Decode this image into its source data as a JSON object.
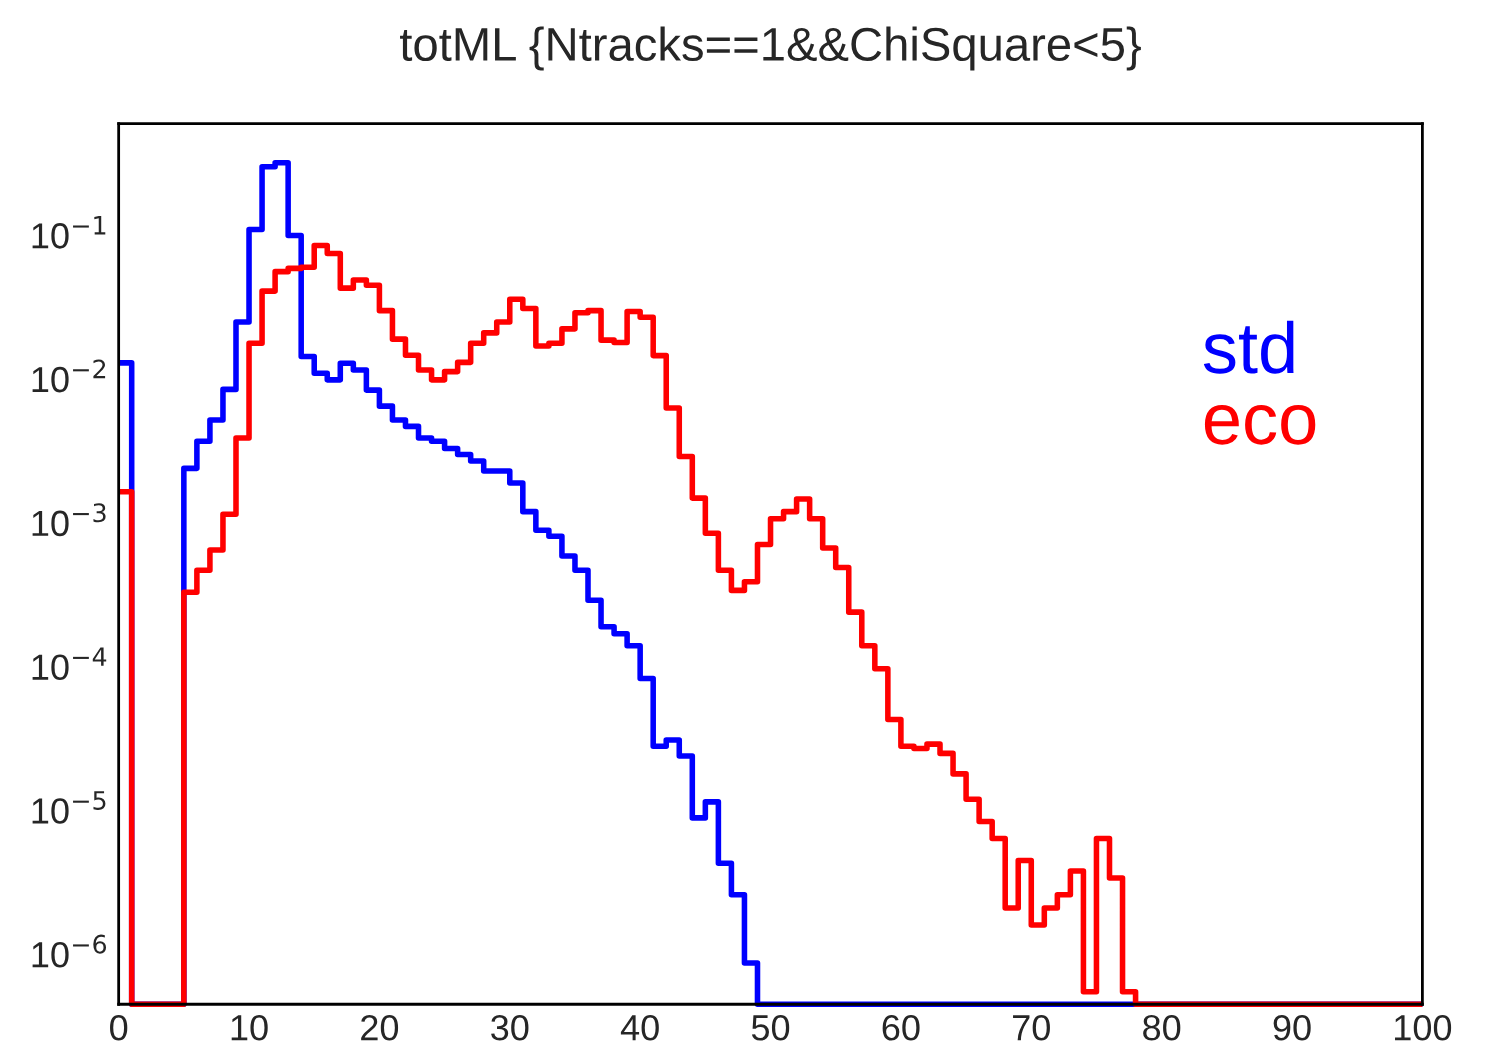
{
  "chart_data": {
    "type": "histogram",
    "title": "totML {Ntracks==1&&ChiSquare<5}",
    "bins": [
      0,
      1,
      2,
      3,
      4,
      5,
      6,
      7,
      8,
      9,
      10,
      11,
      12,
      13,
      14,
      15,
      16,
      17,
      18,
      19,
      20,
      21,
      22,
      23,
      24,
      25,
      26,
      27,
      28,
      29,
      30,
      31,
      32,
      33,
      34,
      35,
      36,
      37,
      38,
      39,
      40,
      41,
      42,
      43,
      44,
      45,
      46,
      47,
      48,
      49,
      50,
      51,
      52,
      53,
      54,
      55,
      56,
      57,
      58,
      59,
      60,
      61,
      62,
      63,
      64,
      65,
      66,
      67,
      68,
      69,
      70,
      71,
      72,
      73,
      74,
      75,
      76,
      77,
      78,
      79,
      80,
      81,
      82,
      83,
      84,
      85,
      86,
      87,
      88,
      89,
      90,
      91,
      92,
      93,
      94,
      95,
      96,
      97,
      98,
      99,
      100
    ],
    "series": [
      {
        "name": "std",
        "color": "#0000ff",
        "values": [
          0.013,
          null,
          null,
          null,
          null,
          0.0024,
          0.0037,
          0.0052,
          0.0085,
          0.025,
          0.11,
          0.3,
          0.32,
          0.1,
          0.0144,
          0.011,
          0.0099,
          0.0129,
          0.0116,
          0.0084,
          0.0065,
          0.0052,
          0.0047,
          0.0039,
          0.0037,
          0.0033,
          0.003,
          0.0027,
          0.0023,
          0.0023,
          0.0019,
          0.0012,
          0.00089,
          0.00081,
          0.00059,
          0.00047,
          0.00029,
          0.00019,
          0.00017,
          0.00014,
          8.3e-05,
          2.8e-05,
          3.1e-05,
          2.4e-05,
          8.9e-06,
          1.15e-05,
          4.3e-06,
          2.6e-06,
          8.7e-07,
          null,
          null,
          null,
          null,
          null,
          null,
          null,
          null,
          null,
          null,
          null,
          null,
          null,
          null,
          null,
          null,
          null,
          null,
          null,
          null,
          null,
          null,
          null,
          null,
          null,
          null,
          null,
          null,
          null,
          null,
          null,
          null,
          null,
          null,
          null,
          null,
          null,
          null,
          null,
          null,
          null,
          null,
          null,
          null,
          null,
          null,
          null,
          null,
          null,
          null,
          null
        ]
      },
      {
        "name": "eco",
        "color": "#ff0000",
        "values": [
          0.00165,
          null,
          null,
          null,
          null,
          0.00033,
          0.00047,
          0.00065,
          0.00115,
          0.0039,
          0.0178,
          0.041,
          0.056,
          0.059,
          0.06,
          0.085,
          0.075,
          0.043,
          0.049,
          0.045,
          0.03,
          0.019,
          0.0147,
          0.0116,
          0.0099,
          0.0113,
          0.0131,
          0.0178,
          0.021,
          0.025,
          0.036,
          0.031,
          0.017,
          0.0178,
          0.0224,
          0.029,
          0.03,
          0.0187,
          0.018,
          0.0296,
          0.027,
          0.0146,
          0.0063,
          0.0029,
          0.00149,
          0.00085,
          0.00047,
          0.00034,
          0.00039,
          0.00071,
          0.00107,
          0.0012,
          0.00147,
          0.00107,
          0.00067,
          0.00049,
          0.00024,
          0.00014,
          9.7e-05,
          4.3e-05,
          2.8e-05,
          2.7e-05,
          2.9e-05,
          2.5e-05,
          1.8e-05,
          1.2e-05,
          8.4e-06,
          6.4e-06,
          2.1e-06,
          4.5e-06,
          1.6e-06,
          2.1e-06,
          2.6e-06,
          3.8e-06,
          5.5e-07,
          6.4e-06,
          3.4e-06,
          5.5e-07,
          null,
          null,
          null,
          null,
          null,
          null,
          null,
          null,
          null,
          null,
          null,
          null,
          null,
          null,
          null,
          null,
          null,
          null,
          null,
          null,
          null,
          null
        ]
      }
    ],
    "log": "y",
    "xlim": [
      0,
      100
    ],
    "xticks": [
      0,
      10,
      20,
      30,
      40,
      50,
      60,
      70,
      80,
      90,
      100
    ],
    "ylim": [
      4.5e-07,
      0.6
    ],
    "yticks": [
      {
        "value": 1e-06,
        "label": "10$^{−6}$"
      },
      {
        "value": 1e-05,
        "label": "10$^{−5}$"
      },
      {
        "value": 0.0001,
        "label": "10$^{−4}$"
      },
      {
        "value": 0.001,
        "label": "10$^{−3}$"
      },
      {
        "value": 0.01,
        "label": "10$^{−2}$"
      },
      {
        "value": 0.1,
        "label": "10$^{−1}$"
      }
    ],
    "grid": false,
    "legend": "top right",
    "line_style": "solid"
  }
}
